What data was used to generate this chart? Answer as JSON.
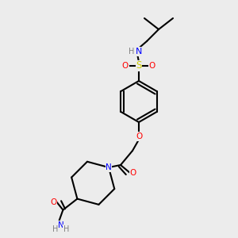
{
  "bg_color": "#ececec",
  "atom_colors": {
    "C": "#000000",
    "N": "#0000ff",
    "O": "#ff0000",
    "S": "#cccc00",
    "H": "#808080"
  },
  "bond_color": "#000000",
  "bond_width": 1.5,
  "font_size_atom": 7.5
}
